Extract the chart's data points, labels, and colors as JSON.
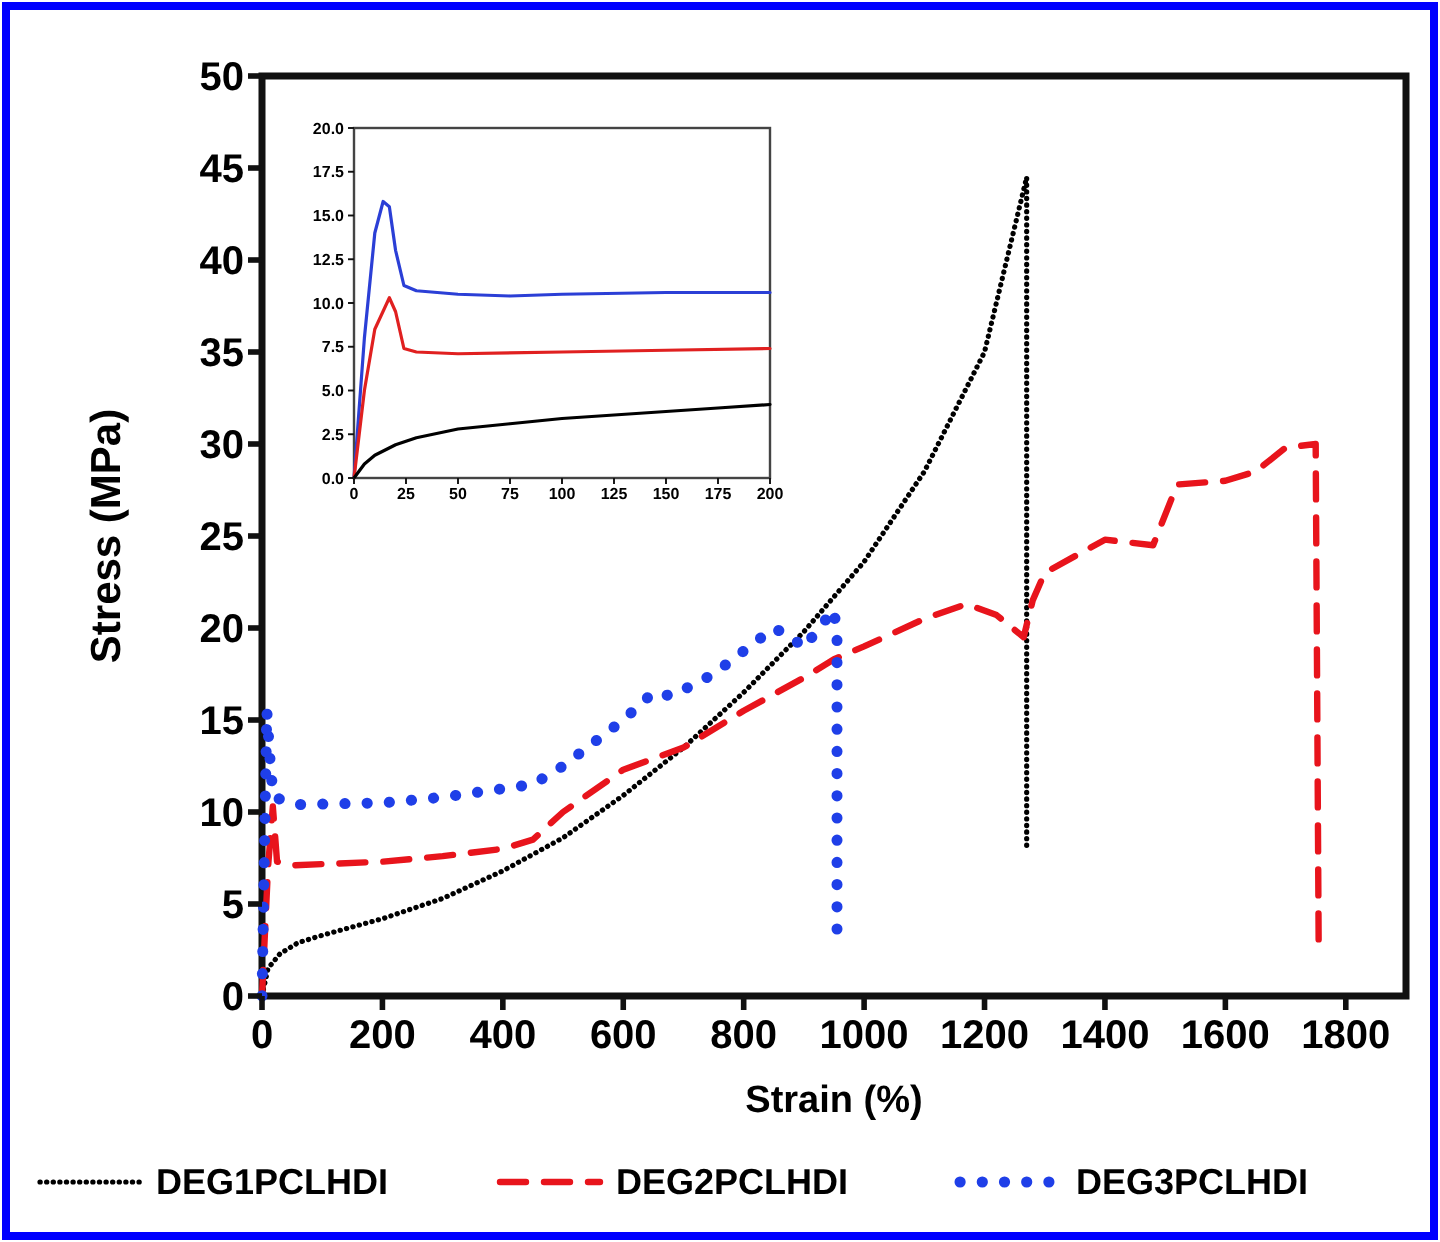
{
  "chart_data": [
    {
      "type": "line",
      "xlabel": "Strain (%)",
      "ylabel": "Stress (MPa)",
      "xlim": [
        0,
        1900
      ],
      "ylim": [
        0,
        50
      ],
      "xticks": [
        0,
        200,
        400,
        600,
        800,
        1000,
        1200,
        1400,
        1600,
        1800
      ],
      "yticks": [
        0,
        5,
        10,
        15,
        20,
        25,
        30,
        35,
        40,
        45,
        50
      ],
      "legend": "bottom",
      "series": [
        {
          "name": "DEG1PCLHDI",
          "color": "#000000",
          "line_style": "dotted",
          "x": [
            0,
            10,
            30,
            60,
            100,
            200,
            300,
            400,
            500,
            600,
            700,
            800,
            900,
            1000,
            1100,
            1200,
            1270,
            1270
          ],
          "values": [
            0,
            1.5,
            2.3,
            2.9,
            3.3,
            4.2,
            5.3,
            6.8,
            8.6,
            10.9,
            13.5,
            16.5,
            19.8,
            23.6,
            28.5,
            35,
            44.5,
            8
          ]
        },
        {
          "name": "DEG2PCLHDI",
          "color": "#e8141c",
          "line_style": "dashed",
          "x": [
            0,
            10,
            18,
            25,
            50,
            200,
            300,
            400,
            450,
            500,
            600,
            700,
            800,
            900,
            950,
            1000,
            1100,
            1170,
            1220,
            1265,
            1280,
            1300,
            1400,
            1480,
            1520,
            1600,
            1650,
            1700,
            1750,
            1755
          ],
          "values": [
            0,
            7,
            10.3,
            7.3,
            7.1,
            7.3,
            7.6,
            8,
            8.5,
            10,
            12.3,
            13.5,
            15.5,
            17.3,
            18.3,
            19,
            20.5,
            21.3,
            20.7,
            19.5,
            21.5,
            23,
            24.8,
            24.5,
            27.8,
            28,
            28.5,
            29.8,
            30,
            2.5
          ]
        },
        {
          "name": "DEG3PCLHDI",
          "color": "#1f3fe8",
          "line_style": "dotted",
          "x": [
            0,
            8,
            15,
            20,
            60,
            200,
            300,
            450,
            500,
            600,
            650,
            680,
            750,
            850,
            880,
            900,
            920,
            950,
            955,
            955
          ],
          "values": [
            0,
            15.5,
            12,
            10.8,
            10.4,
            10.5,
            10.8,
            11.5,
            12.5,
            15,
            16.5,
            16.3,
            17.5,
            20,
            19.5,
            18.9,
            19.8,
            21,
            19.5,
            3.3
          ]
        }
      ]
    },
    {
      "type": "line",
      "xlim": [
        0,
        200
      ],
      "ylim": [
        0,
        20
      ],
      "xticks": [
        0,
        25,
        50,
        75,
        100,
        125,
        150,
        175,
        200
      ],
      "yticks": [
        {
          "value": 0,
          "label": "0.0"
        },
        {
          "value": 2.5,
          "label": "2.5"
        },
        {
          "value": 5,
          "label": "5.0"
        },
        {
          "value": 7.5,
          "label": "7.5"
        },
        {
          "value": 10,
          "label": "10.0"
        },
        {
          "value": 12.5,
          "label": "12.5"
        },
        {
          "value": 15,
          "label": "15.0"
        },
        {
          "value": 17.5,
          "label": "17.5"
        },
        {
          "value": 20,
          "label": "20.0"
        }
      ],
      "series": [
        {
          "color": "#2b3fd6",
          "x": [
            0,
            5,
            10,
            14,
            17,
            20,
            24,
            30,
            50,
            75,
            100,
            150,
            200
          ],
          "values": [
            0,
            8,
            14,
            15.8,
            15.5,
            13,
            11,
            10.7,
            10.5,
            10.4,
            10.5,
            10.6,
            10.6
          ]
        },
        {
          "color": "#e02020",
          "x": [
            0,
            5,
            10,
            17,
            20,
            24,
            30,
            50,
            100,
            150,
            200
          ],
          "values": [
            0,
            5,
            8.5,
            10.3,
            9.5,
            7.4,
            7.2,
            7.1,
            7.2,
            7.3,
            7.4
          ]
        },
        {
          "color": "#000000",
          "x": [
            0,
            5,
            10,
            20,
            30,
            50,
            75,
            100,
            125,
            150,
            175,
            200
          ],
          "values": [
            0,
            0.8,
            1.3,
            1.9,
            2.3,
            2.8,
            3.1,
            3.4,
            3.6,
            3.8,
            4,
            4.2
          ]
        }
      ]
    }
  ]
}
